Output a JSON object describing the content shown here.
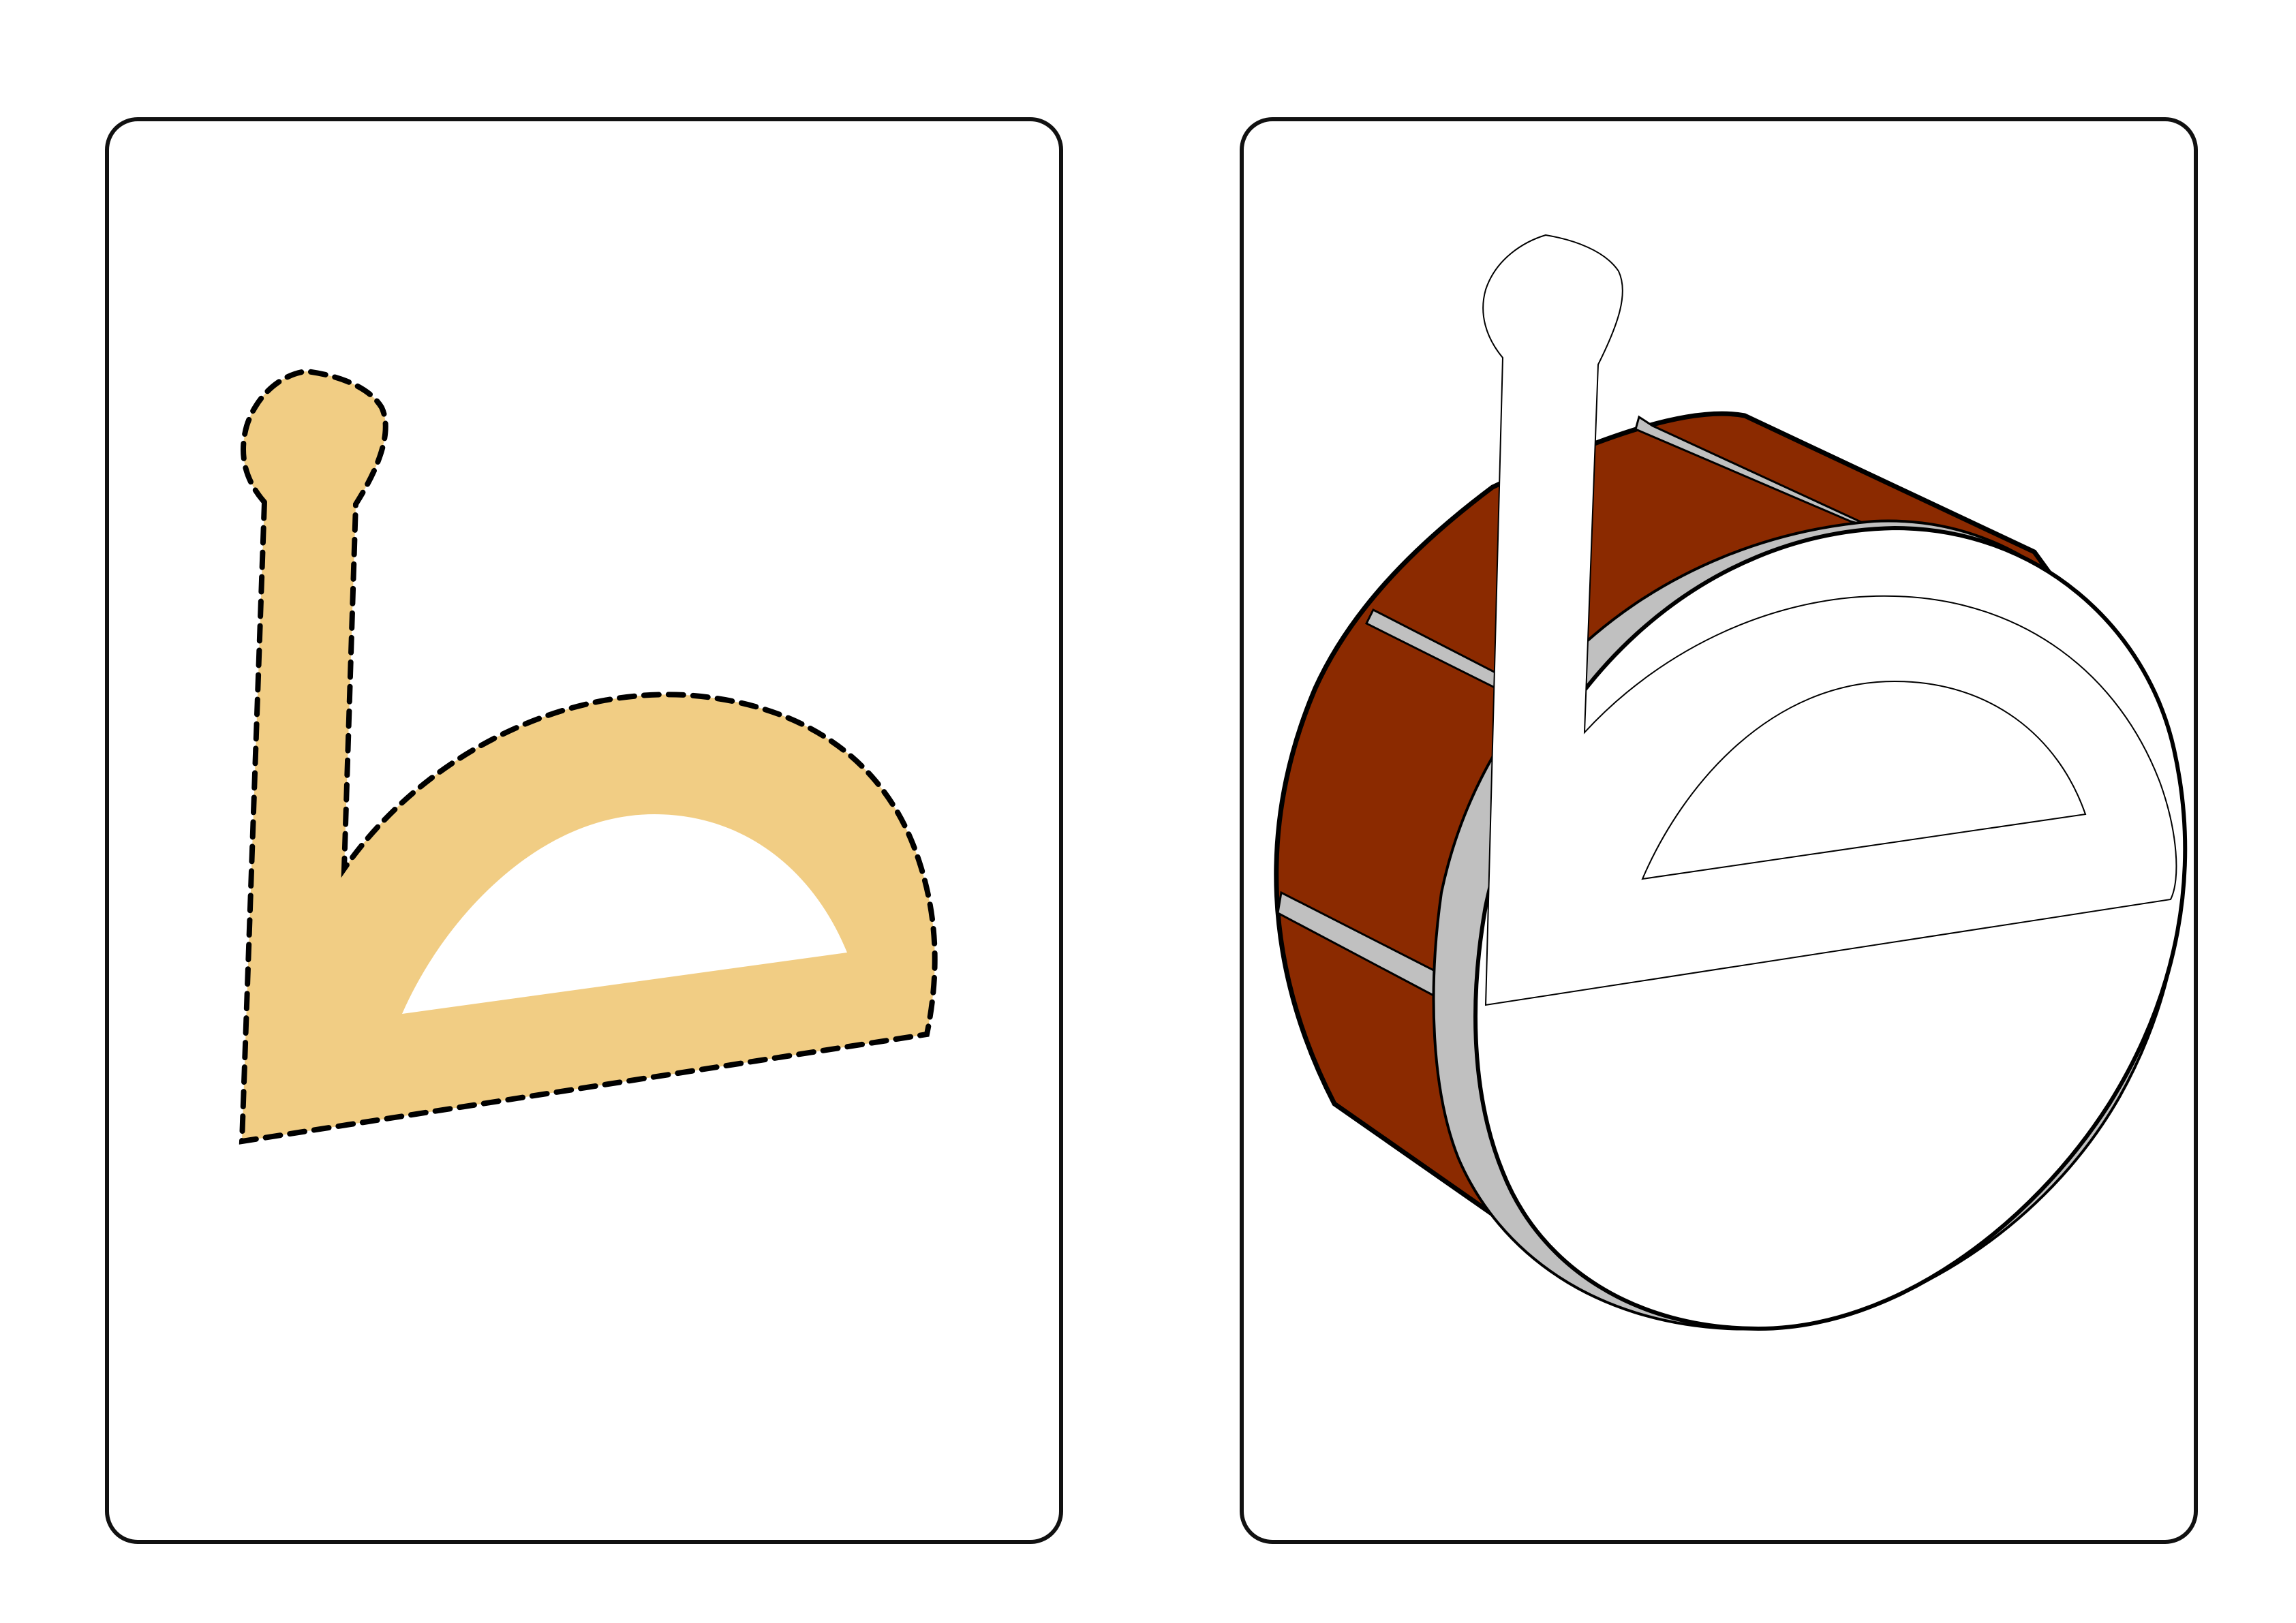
{
  "letter": {
    "fill_color": "#f1cd84",
    "dash_color": "#000000"
  },
  "drum": {
    "body_color": "#8b2a00",
    "rim_color": "#c0c0c0",
    "head_color": "#ffffff",
    "outline_color": "#000000"
  },
  "cards": {
    "border_color": "#111111"
  }
}
